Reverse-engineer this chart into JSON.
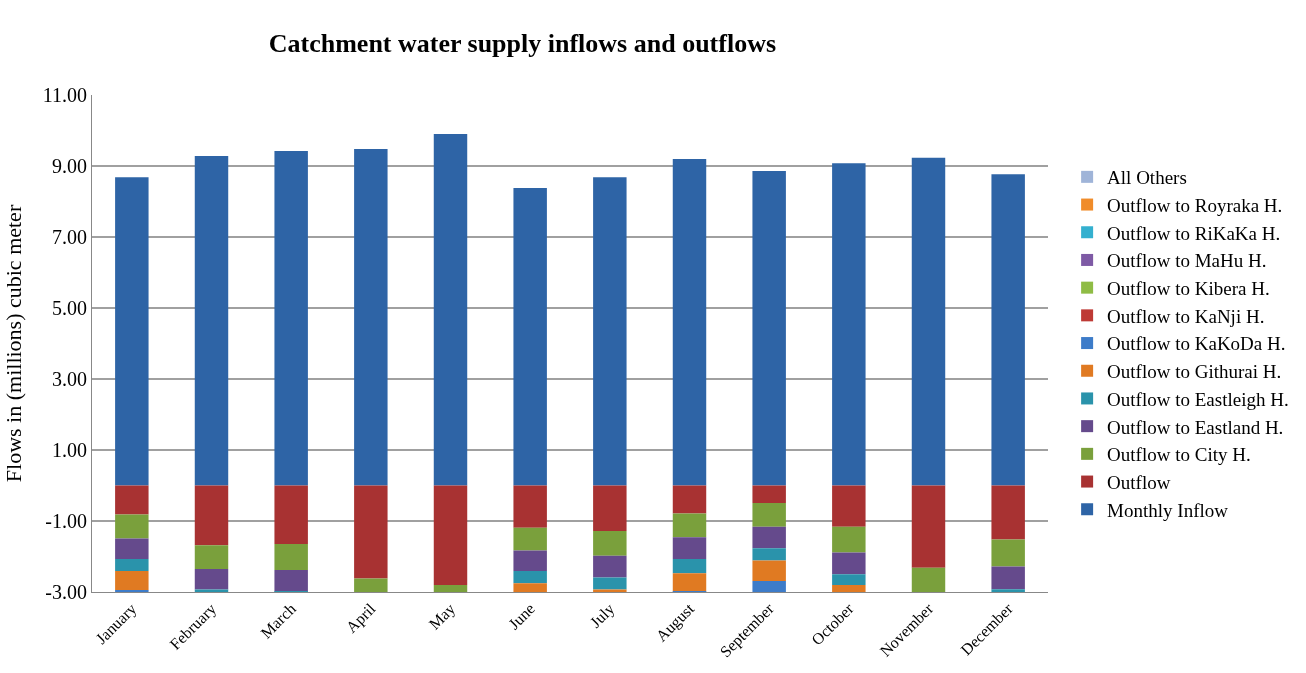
{
  "chart_data": {
    "type": "bar",
    "title": "Catchment water supply inflows and outflows",
    "ylabel": "Flows in (millions) cubic meter",
    "categories": [
      "January",
      "February",
      "March",
      "April",
      "May",
      "June",
      "July",
      "August",
      "September",
      "October",
      "November",
      "December"
    ],
    "stacked": true,
    "grid": "y",
    "legend": "right",
    "ylim": [
      -3,
      11
    ],
    "yticks": [
      {
        "value": -3,
        "label": "-3.00"
      },
      {
        "value": -1,
        "label": "-1.00"
      },
      {
        "value": 1,
        "label": "1.00"
      },
      {
        "value": 3,
        "label": "3.00"
      },
      {
        "value": 5,
        "label": "5.00"
      },
      {
        "value": 7,
        "label": "7.00"
      },
      {
        "value": 9,
        "label": "9.00"
      },
      {
        "value": 11,
        "label": "11.00"
      }
    ],
    "series": [
      {
        "name": "Monthly Inflow",
        "color": "#2e64a6",
        "values": [
          8.68,
          9.28,
          9.42,
          9.48,
          9.9,
          8.38,
          8.68,
          9.2,
          8.86,
          9.08,
          9.23,
          8.77
        ]
      },
      {
        "name": "Outflow",
        "color": "#a83232",
        "values": [
          -0.82,
          -1.68,
          -1.65,
          -2.62,
          -2.8,
          -1.19,
          -1.28,
          -0.79,
          -0.49,
          -1.16,
          -2.32,
          -1.52
        ]
      },
      {
        "name": "Outflow to City H.",
        "color": "#7aa03c",
        "values": [
          -0.67,
          -0.67,
          -0.73,
          -0.38,
          -0.2,
          -0.64,
          -0.7,
          -0.67,
          -0.67,
          -0.73,
          -0.68,
          -0.76
        ]
      },
      {
        "name": "Outflow to Eastland H.",
        "color": "#654a8c",
        "values": [
          -0.58,
          -0.58,
          -0.61,
          null,
          null,
          -0.58,
          -0.61,
          -0.61,
          -0.61,
          -0.61,
          null,
          -0.64
        ]
      },
      {
        "name": "Outflow to Eastleigh H.",
        "color": "#2a93ab",
        "values": [
          -0.34,
          -0.07,
          -0.01,
          null,
          null,
          -0.34,
          -0.34,
          -0.4,
          -0.34,
          -0.3,
          null,
          -0.08
        ]
      },
      {
        "name": "Outflow to Githurai H.",
        "color": "#e07a22",
        "values": [
          -0.54,
          null,
          null,
          null,
          null,
          -0.25,
          -0.07,
          -0.52,
          -0.58,
          -0.2,
          null,
          null
        ]
      },
      {
        "name": "Outflow to KaKoDa H.",
        "color": "#3d7cc9",
        "values": [
          -0.05,
          null,
          null,
          null,
          null,
          null,
          null,
          -0.01,
          -0.31,
          null,
          null,
          null
        ]
      },
      {
        "name": "Outflow to KaNji H.",
        "color": "#be3a35",
        "values": [
          null,
          null,
          null,
          null,
          null,
          null,
          null,
          null,
          null,
          null,
          null,
          null
        ]
      },
      {
        "name": "Outflow to Kibera H.",
        "color": "#8fbc45",
        "values": [
          null,
          null,
          null,
          null,
          null,
          null,
          null,
          null,
          null,
          null,
          null,
          null
        ]
      },
      {
        "name": "Outflow to MaHu H.",
        "color": "#7e5aa5",
        "values": [
          null,
          null,
          null,
          null,
          null,
          null,
          null,
          null,
          null,
          null,
          null,
          null
        ]
      },
      {
        "name": "Outflow to RiKaKa H.",
        "color": "#34b0cf",
        "values": [
          null,
          null,
          null,
          null,
          null,
          null,
          null,
          null,
          null,
          null,
          null,
          null
        ]
      },
      {
        "name": "Outflow to Royraka H.",
        "color": "#f08c2a",
        "values": [
          null,
          null,
          null,
          null,
          null,
          null,
          null,
          null,
          null,
          null,
          null,
          null
        ]
      },
      {
        "name": "All Others",
        "color": "#9fb4d8",
        "values": [
          null,
          null,
          null,
          null,
          null,
          null,
          null,
          null,
          null,
          null,
          null,
          null
        ]
      }
    ]
  }
}
